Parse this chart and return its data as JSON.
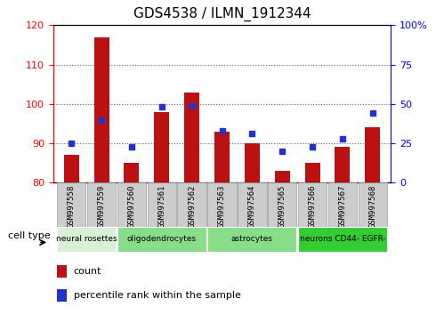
{
  "title": "GDS4538 / ILMN_1912344",
  "samples": [
    "GSM997558",
    "GSM997559",
    "GSM997560",
    "GSM997561",
    "GSM997562",
    "GSM997563",
    "GSM997564",
    "GSM997565",
    "GSM997566",
    "GSM997567",
    "GSM997568"
  ],
  "count_values": [
    87,
    117,
    85,
    98,
    103,
    93,
    90,
    83,
    85,
    89,
    94
  ],
  "percentile_values": [
    25,
    40,
    23,
    48,
    49,
    33,
    31,
    20,
    23,
    28,
    44
  ],
  "ylim_left": [
    80,
    120
  ],
  "ylim_right": [
    0,
    100
  ],
  "yticks_left": [
    80,
    90,
    100,
    110,
    120
  ],
  "yticks_right": [
    0,
    25,
    50,
    75,
    100
  ],
  "ytick_labels_right": [
    "0",
    "25",
    "50",
    "75",
    "100%"
  ],
  "bar_color": "#bb1111",
  "dot_color": "#2233cc",
  "bar_width": 0.5,
  "group_defs": [
    {
      "start": 0,
      "end": 1,
      "label": "neural rosettes",
      "color": "#d8f0d8"
    },
    {
      "start": 2,
      "end": 4,
      "label": "oligodendrocytes",
      "color": "#88dd88"
    },
    {
      "start": 5,
      "end": 7,
      "label": "astrocytes",
      "color": "#88dd88"
    },
    {
      "start": 8,
      "end": 10,
      "label": "neurons CD44- EGFR-",
      "color": "#33cc33"
    }
  ],
  "legend_count_label": "count",
  "legend_pct_label": "percentile rank within the sample",
  "cell_type_label": "cell type",
  "xtick_bg_color": "#cccccc",
  "xtick_edge_color": "#999999"
}
